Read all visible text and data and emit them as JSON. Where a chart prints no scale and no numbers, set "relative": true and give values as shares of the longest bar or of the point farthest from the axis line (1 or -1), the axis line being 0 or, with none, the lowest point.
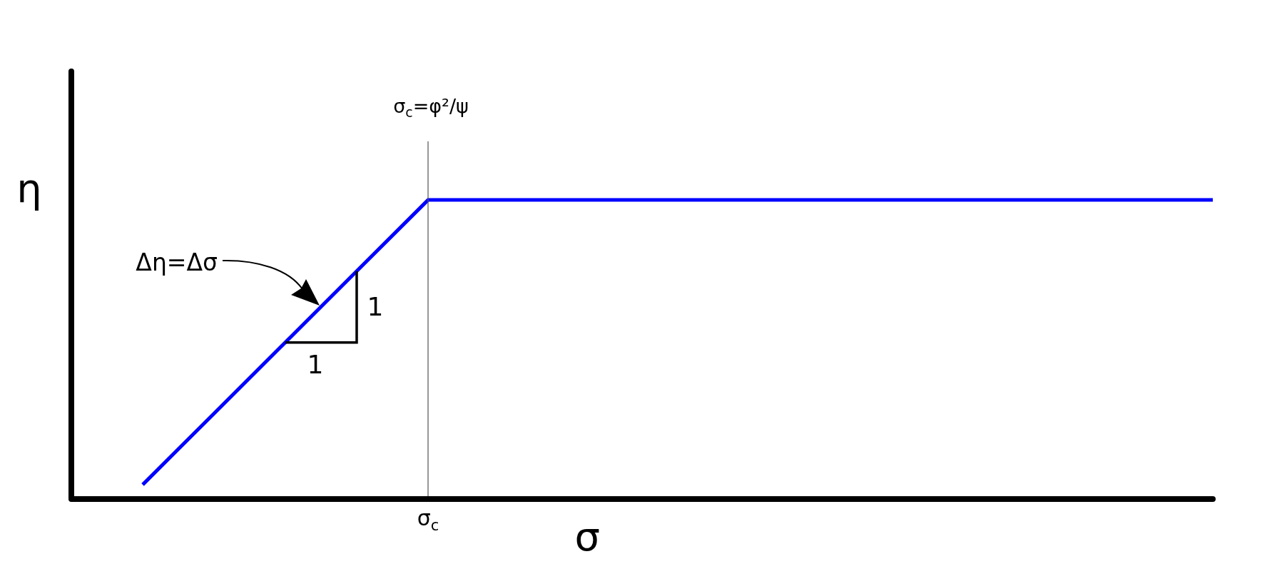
{
  "chart_data": {
    "type": "line",
    "xlabel": "σ",
    "ylabel": "η",
    "relative": true,
    "categories": [
      null,
      null,
      null,
      null,
      null,
      null,
      null,
      null,
      null,
      null,
      null,
      null,
      null,
      null,
      null,
      null,
      null
    ],
    "series": [
      {
        "color": "#0000ff",
        "values": [
          null,
          0.048,
          0.286,
          0.524,
          0.762,
          1,
          1,
          1,
          1,
          1,
          1,
          1,
          1,
          1,
          1,
          1,
          1
        ]
      }
    ],
    "annotations": [
      "σ$_{c}$=φ²/ψ",
      "Δη=Δσ",
      "1",
      "1",
      "σ$_{c}$"
    ],
    "marker": "none"
  }
}
